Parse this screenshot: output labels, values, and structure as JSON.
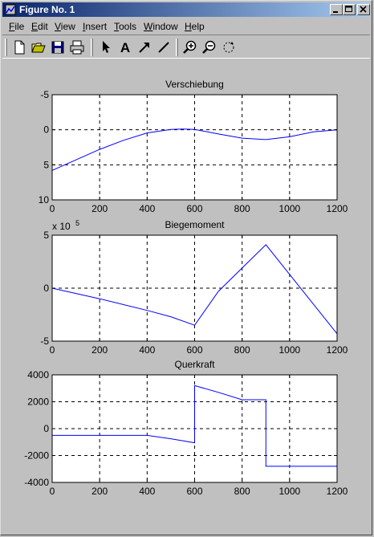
{
  "window": {
    "title": "Figure No. 1"
  },
  "menu": [
    {
      "key": "F",
      "rest": "ile"
    },
    {
      "key": "E",
      "rest": "dit"
    },
    {
      "key": "V",
      "rest": "iew"
    },
    {
      "key": "I",
      "rest": "nsert"
    },
    {
      "key": "T",
      "rest": "ools"
    },
    {
      "key": "W",
      "rest": "indow"
    },
    {
      "key": "H",
      "rest": "elp"
    }
  ],
  "toolbar": {
    "icons": [
      "new-file-icon",
      "open-file-icon",
      "save-icon",
      "print-icon",
      "select-arrow-icon",
      "text-icon",
      "arrow-icon",
      "line-icon",
      "zoom-in-icon",
      "zoom-out-icon",
      "rotate-icon"
    ],
    "text_tool_glyph": "A"
  },
  "colors": {
    "line": "#0000ff",
    "title_bar_start": "#0a246a",
    "title_bar_end": "#a6caf0"
  },
  "chart_data": [
    {
      "type": "line",
      "title": "Verschiebung",
      "xlim": [
        0,
        1200
      ],
      "ylim": [
        -5,
        10
      ],
      "y_reversed": true,
      "grid": true,
      "xticks": [
        0,
        200,
        400,
        600,
        800,
        1000,
        1200
      ],
      "yticks": [
        -5,
        0,
        5,
        10
      ],
      "x": [
        0,
        100,
        200,
        300,
        400,
        500,
        550,
        600,
        700,
        800,
        900,
        1000,
        1100,
        1200
      ],
      "y": [
        5.8,
        4.3,
        2.8,
        1.5,
        0.45,
        -0.05,
        -0.1,
        -0.05,
        0.6,
        1.2,
        1.4,
        1.0,
        0.3,
        0
      ]
    },
    {
      "type": "line",
      "title": "Biegemoment",
      "exponent_label": "x 10",
      "exponent_power": "5",
      "xlim": [
        0,
        1200
      ],
      "ylim": [
        -5,
        5
      ],
      "grid": true,
      "xticks": [
        0,
        200,
        400,
        600,
        800,
        1000,
        1200
      ],
      "yticks": [
        -5,
        0,
        5
      ],
      "x": [
        0,
        200,
        400,
        500,
        600,
        700,
        800,
        900,
        1000,
        1100,
        1200
      ],
      "y": [
        0,
        -1.0,
        -2.1,
        -2.7,
        -3.5,
        -0.3,
        1.9,
        4.1,
        1.3,
        -1.5,
        -4.3
      ]
    },
    {
      "type": "line",
      "title": "Querkraft",
      "xlim": [
        0,
        1200
      ],
      "ylim": [
        -4000,
        4000
      ],
      "grid": true,
      "xticks": [
        0,
        200,
        400,
        600,
        800,
        1000,
        1200
      ],
      "yticks": [
        -4000,
        -2000,
        0,
        2000,
        4000
      ],
      "x": [
        0,
        400,
        500,
        600,
        600,
        700,
        800,
        900,
        900,
        1200
      ],
      "y": [
        -500,
        -500,
        -750,
        -1050,
        3200,
        2700,
        2150,
        2150,
        -2800,
        -2800
      ]
    }
  ]
}
